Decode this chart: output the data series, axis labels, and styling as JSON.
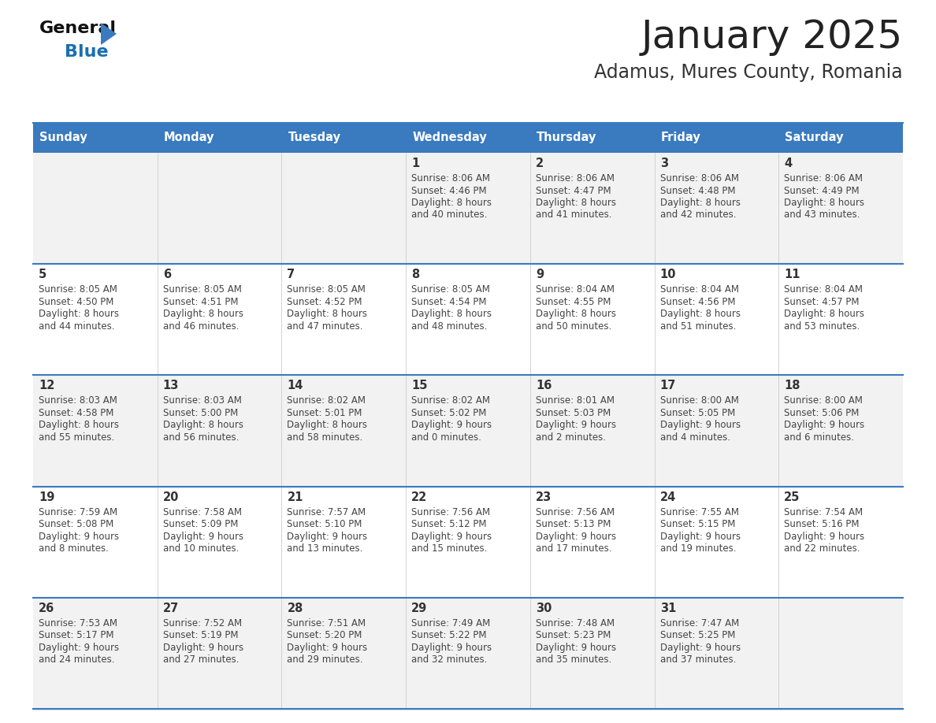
{
  "title": "January 2025",
  "subtitle": "Adamus, Mures County, Romania",
  "days_of_week": [
    "Sunday",
    "Monday",
    "Tuesday",
    "Wednesday",
    "Thursday",
    "Friday",
    "Saturday"
  ],
  "header_bg": "#3a7abf",
  "header_text": "#ffffff",
  "row_bg_odd": "#f2f2f2",
  "row_bg_even": "#ffffff",
  "day_num_color": "#333333",
  "info_color": "#444444",
  "title_color": "#222222",
  "subtitle_color": "#333333",
  "calendar_data": [
    [
      {
        "day": "",
        "sunrise": "",
        "sunset": "",
        "daylight_h": "",
        "daylight_m": ""
      },
      {
        "day": "",
        "sunrise": "",
        "sunset": "",
        "daylight_h": "",
        "daylight_m": ""
      },
      {
        "day": "",
        "sunrise": "",
        "sunset": "",
        "daylight_h": "",
        "daylight_m": ""
      },
      {
        "day": "1",
        "sunrise": "8:06 AM",
        "sunset": "4:46 PM",
        "daylight_h": "8",
        "daylight_m": "40"
      },
      {
        "day": "2",
        "sunrise": "8:06 AM",
        "sunset": "4:47 PM",
        "daylight_h": "8",
        "daylight_m": "41"
      },
      {
        "day": "3",
        "sunrise": "8:06 AM",
        "sunset": "4:48 PM",
        "daylight_h": "8",
        "daylight_m": "42"
      },
      {
        "day": "4",
        "sunrise": "8:06 AM",
        "sunset": "4:49 PM",
        "daylight_h": "8",
        "daylight_m": "43"
      }
    ],
    [
      {
        "day": "5",
        "sunrise": "8:05 AM",
        "sunset": "4:50 PM",
        "daylight_h": "8",
        "daylight_m": "44"
      },
      {
        "day": "6",
        "sunrise": "8:05 AM",
        "sunset": "4:51 PM",
        "daylight_h": "8",
        "daylight_m": "46"
      },
      {
        "day": "7",
        "sunrise": "8:05 AM",
        "sunset": "4:52 PM",
        "daylight_h": "8",
        "daylight_m": "47"
      },
      {
        "day": "8",
        "sunrise": "8:05 AM",
        "sunset": "4:54 PM",
        "daylight_h": "8",
        "daylight_m": "48"
      },
      {
        "day": "9",
        "sunrise": "8:04 AM",
        "sunset": "4:55 PM",
        "daylight_h": "8",
        "daylight_m": "50"
      },
      {
        "day": "10",
        "sunrise": "8:04 AM",
        "sunset": "4:56 PM",
        "daylight_h": "8",
        "daylight_m": "51"
      },
      {
        "day": "11",
        "sunrise": "8:04 AM",
        "sunset": "4:57 PM",
        "daylight_h": "8",
        "daylight_m": "53"
      }
    ],
    [
      {
        "day": "12",
        "sunrise": "8:03 AM",
        "sunset": "4:58 PM",
        "daylight_h": "8",
        "daylight_m": "55"
      },
      {
        "day": "13",
        "sunrise": "8:03 AM",
        "sunset": "5:00 PM",
        "daylight_h": "8",
        "daylight_m": "56"
      },
      {
        "day": "14",
        "sunrise": "8:02 AM",
        "sunset": "5:01 PM",
        "daylight_h": "8",
        "daylight_m": "58"
      },
      {
        "day": "15",
        "sunrise": "8:02 AM",
        "sunset": "5:02 PM",
        "daylight_h": "9",
        "daylight_m": "0"
      },
      {
        "day": "16",
        "sunrise": "8:01 AM",
        "sunset": "5:03 PM",
        "daylight_h": "9",
        "daylight_m": "2"
      },
      {
        "day": "17",
        "sunrise": "8:00 AM",
        "sunset": "5:05 PM",
        "daylight_h": "9",
        "daylight_m": "4"
      },
      {
        "day": "18",
        "sunrise": "8:00 AM",
        "sunset": "5:06 PM",
        "daylight_h": "9",
        "daylight_m": "6"
      }
    ],
    [
      {
        "day": "19",
        "sunrise": "7:59 AM",
        "sunset": "5:08 PM",
        "daylight_h": "9",
        "daylight_m": "8"
      },
      {
        "day": "20",
        "sunrise": "7:58 AM",
        "sunset": "5:09 PM",
        "daylight_h": "9",
        "daylight_m": "10"
      },
      {
        "day": "21",
        "sunrise": "7:57 AM",
        "sunset": "5:10 PM",
        "daylight_h": "9",
        "daylight_m": "13"
      },
      {
        "day": "22",
        "sunrise": "7:56 AM",
        "sunset": "5:12 PM",
        "daylight_h": "9",
        "daylight_m": "15"
      },
      {
        "day": "23",
        "sunrise": "7:56 AM",
        "sunset": "5:13 PM",
        "daylight_h": "9",
        "daylight_m": "17"
      },
      {
        "day": "24",
        "sunrise": "7:55 AM",
        "sunset": "5:15 PM",
        "daylight_h": "9",
        "daylight_m": "19"
      },
      {
        "day": "25",
        "sunrise": "7:54 AM",
        "sunset": "5:16 PM",
        "daylight_h": "9",
        "daylight_m": "22"
      }
    ],
    [
      {
        "day": "26",
        "sunrise": "7:53 AM",
        "sunset": "5:17 PM",
        "daylight_h": "9",
        "daylight_m": "24"
      },
      {
        "day": "27",
        "sunrise": "7:52 AM",
        "sunset": "5:19 PM",
        "daylight_h": "9",
        "daylight_m": "27"
      },
      {
        "day": "28",
        "sunrise": "7:51 AM",
        "sunset": "5:20 PM",
        "daylight_h": "9",
        "daylight_m": "29"
      },
      {
        "day": "29",
        "sunrise": "7:49 AM",
        "sunset": "5:22 PM",
        "daylight_h": "9",
        "daylight_m": "32"
      },
      {
        "day": "30",
        "sunrise": "7:48 AM",
        "sunset": "5:23 PM",
        "daylight_h": "9",
        "daylight_m": "35"
      },
      {
        "day": "31",
        "sunrise": "7:47 AM",
        "sunset": "5:25 PM",
        "daylight_h": "9",
        "daylight_m": "37"
      },
      {
        "day": "",
        "sunrise": "",
        "sunset": "",
        "daylight_h": "",
        "daylight_m": ""
      }
    ]
  ]
}
